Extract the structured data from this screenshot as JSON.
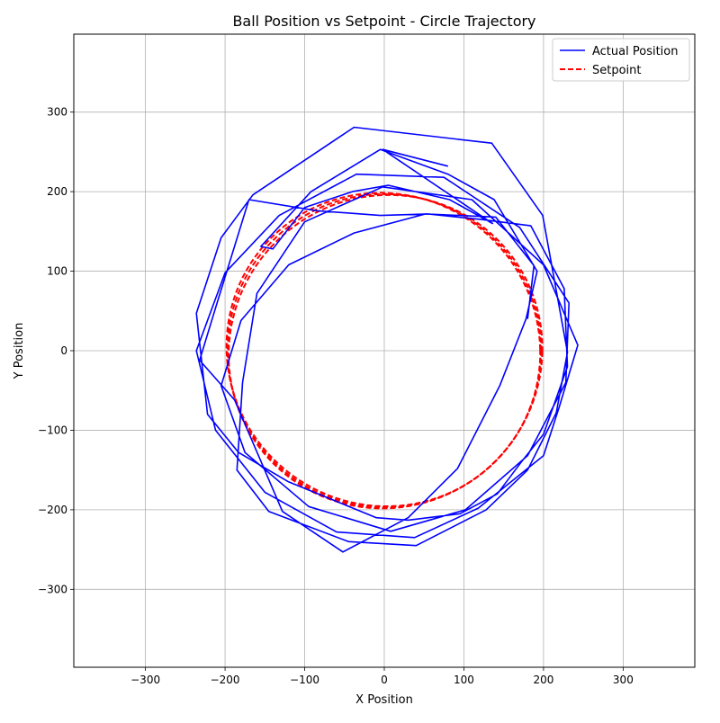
{
  "chart_data": {
    "type": "line",
    "title": "Ball Position vs Setpoint - Circle Trajectory",
    "xlabel": "X Position",
    "ylabel": "Y Position",
    "xlim": [
      -390,
      390
    ],
    "ylim": [
      -398,
      398
    ],
    "xticks": [
      -300,
      -200,
      -100,
      0,
      100,
      200,
      300
    ],
    "yticks": [
      -300,
      -200,
      -100,
      0,
      100,
      200,
      300
    ],
    "xtick_labels": [
      "−300",
      "−200",
      "−100",
      "0",
      "100",
      "200",
      "300"
    ],
    "ytick_labels": [
      "−300",
      "−200",
      "−100",
      "0",
      "100",
      "200",
      "300"
    ],
    "grid": true,
    "legend_position": "top-right",
    "series": [
      {
        "name": "Actual Position",
        "color": "#0000ff",
        "style": "solid",
        "points": [
          [
            180,
            40
          ],
          [
            188,
            107
          ],
          [
            140,
            168
          ],
          [
            52,
            172
          ],
          [
            -38,
            148
          ],
          [
            -120,
            108
          ],
          [
            -180,
            38
          ],
          [
            -205,
            -44
          ],
          [
            -175,
            -128
          ],
          [
            -95,
            -196
          ],
          [
            8,
            -227
          ],
          [
            102,
            -200
          ],
          [
            180,
            -132
          ],
          [
            228,
            -40
          ],
          [
            232,
            60
          ],
          [
            170,
            155
          ],
          [
            75,
            218
          ],
          [
            -35,
            222
          ],
          [
            -132,
            170
          ],
          [
            -200,
            98
          ],
          [
            -236,
            0
          ],
          [
            -212,
            -100
          ],
          [
            -150,
            -178
          ],
          [
            -60,
            -228
          ],
          [
            38,
            -235
          ],
          [
            118,
            -198
          ],
          [
            200,
            -132
          ],
          [
            220,
            -70
          ],
          [
            243,
            7
          ],
          [
            200,
            108
          ],
          [
            110,
            190
          ],
          [
            -2,
            206
          ],
          [
            -100,
            162
          ],
          [
            -160,
            72
          ],
          [
            -178,
            -40
          ],
          [
            -185,
            -150
          ],
          [
            -145,
            -202
          ],
          [
            -45,
            -240
          ],
          [
            40,
            -245
          ],
          [
            128,
            -200
          ],
          [
            180,
            -150
          ],
          [
            216,
            -78
          ],
          [
            230,
            -2
          ],
          [
            199,
            170
          ],
          [
            135,
            261
          ],
          [
            -38,
            281
          ],
          [
            -165,
            196
          ],
          [
            -205,
            142
          ],
          [
            -236,
            47
          ],
          [
            -222,
            -80
          ],
          [
            -183,
            -128
          ],
          [
            -120,
            -165
          ],
          [
            -10,
            -210
          ],
          [
            30,
            -213
          ],
          [
            95,
            -205
          ],
          [
            142,
            -180
          ],
          [
            172,
            -140
          ],
          [
            200,
            -105
          ],
          [
            230,
            -20
          ],
          [
            226,
            78
          ],
          [
            184,
            157
          ],
          [
            122,
            165
          ],
          [
            55,
            172
          ],
          [
            -5,
            170
          ],
          [
            -85,
            176
          ],
          [
            -170,
            190
          ],
          [
            -210,
            60
          ],
          [
            -232,
            -12
          ],
          [
            -188,
            -62
          ],
          [
            -128,
            -202
          ],
          [
            -52,
            -253
          ],
          [
            30,
            -210
          ],
          [
            92,
            -148
          ],
          [
            145,
            -44
          ],
          [
            178,
            40
          ],
          [
            192,
            100
          ],
          [
            138,
            190
          ],
          [
            80,
            222
          ],
          [
            -5,
            253
          ],
          [
            -92,
            200
          ],
          [
            -155,
            131
          ],
          [
            -150,
            130
          ],
          [
            -140,
            128
          ],
          [
            -100,
            180
          ],
          [
            -40,
            200
          ],
          [
            5,
            208
          ],
          [
            82,
            190
          ],
          [
            136,
            160
          ],
          [
            -2,
            253
          ],
          [
            80,
            232
          ]
        ]
      },
      {
        "name": "Setpoint",
        "color": "#ff0000",
        "style": "dashed",
        "circle": {
          "cx": 0,
          "cy": 0,
          "r": 197
        },
        "laps": 3
      }
    ]
  }
}
